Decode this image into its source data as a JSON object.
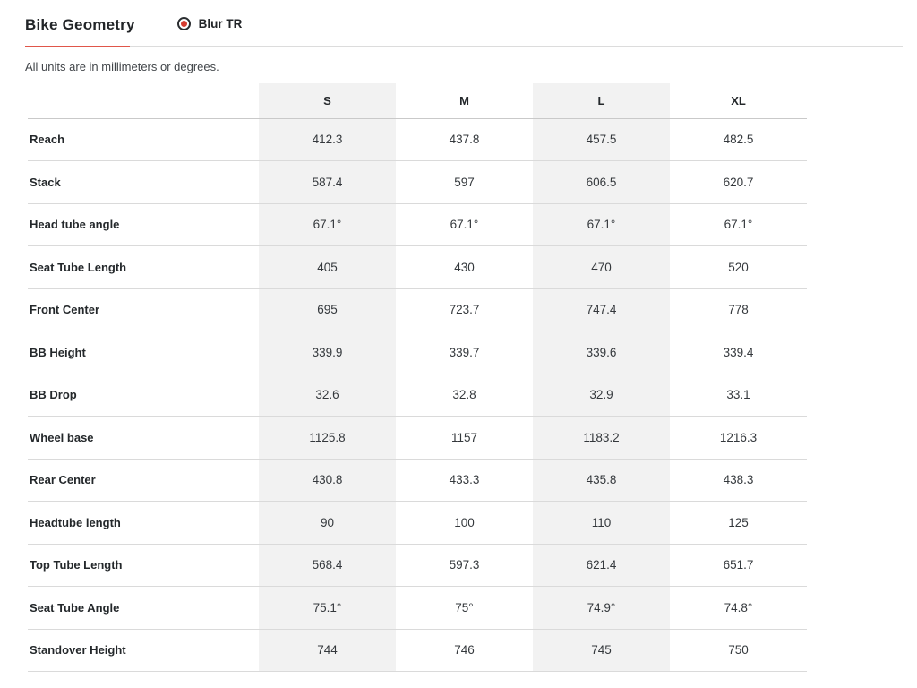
{
  "accent": {
    "underline": "#e0564a",
    "radio_dot": "#d63c30"
  },
  "header": {
    "title": "Bike Geometry",
    "radio": {
      "label": "Blur TR",
      "selected": true
    }
  },
  "subtitle": "All units are in millimeters or degrees.",
  "table": {
    "columns": [
      "S",
      "M",
      "L",
      "XL"
    ],
    "striped_column_indexes": [
      0,
      2
    ],
    "rows": [
      {
        "label": "Reach",
        "values": [
          "412.3",
          "437.8",
          "457.5",
          "482.5"
        ]
      },
      {
        "label": "Stack",
        "values": [
          "587.4",
          "597",
          "606.5",
          "620.7"
        ]
      },
      {
        "label": "Head tube angle",
        "values": [
          "67.1°",
          "67.1°",
          "67.1°",
          "67.1°"
        ]
      },
      {
        "label": "Seat Tube Length",
        "values": [
          "405",
          "430",
          "470",
          "520"
        ]
      },
      {
        "label": "Front Center",
        "values": [
          "695",
          "723.7",
          "747.4",
          "778"
        ]
      },
      {
        "label": "BB Height",
        "values": [
          "339.9",
          "339.7",
          "339.6",
          "339.4"
        ]
      },
      {
        "label": "BB Drop",
        "values": [
          "32.6",
          "32.8",
          "32.9",
          "33.1"
        ]
      },
      {
        "label": "Wheel base",
        "values": [
          "1125.8",
          "1157",
          "1183.2",
          "1216.3"
        ]
      },
      {
        "label": "Rear Center",
        "values": [
          "430.8",
          "433.3",
          "435.8",
          "438.3"
        ]
      },
      {
        "label": "Headtube length",
        "values": [
          "90",
          "100",
          "110",
          "125"
        ]
      },
      {
        "label": "Top Tube Length",
        "values": [
          "568.4",
          "597.3",
          "621.4",
          "651.7"
        ]
      },
      {
        "label": "Seat Tube Angle",
        "values": [
          "75.1°",
          "75°",
          "74.9°",
          "74.8°"
        ]
      },
      {
        "label": "Standover Height",
        "values": [
          "744",
          "746",
          "745",
          "750"
        ]
      }
    ]
  }
}
